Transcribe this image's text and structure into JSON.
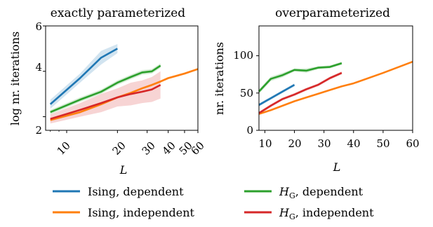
{
  "chart_data": [
    {
      "type": "line",
      "title": "exactly parameterized",
      "xlabel": "L",
      "ylabel": "log nr. iterations",
      "xscale": "log",
      "xlim": [
        7.5,
        60
      ],
      "ylim": [
        1.4,
        6
      ],
      "xticks": [
        "10",
        "20",
        "30",
        "40",
        "50",
        "60"
      ],
      "yticks": [
        "2",
        "4",
        "6"
      ],
      "grid": false,
      "series": [
        {
          "key": "ising_dep",
          "x": [
            8,
            12,
            16,
            20
          ],
          "y": [
            2.55,
            3.7,
            4.6,
            5.0
          ],
          "band": [
            0.2,
            0.2,
            0.3,
            0.2
          ]
        },
        {
          "key": "ising_ind",
          "x": [
            8,
            12,
            16,
            20,
            24,
            28,
            32,
            36,
            40,
            50,
            60
          ],
          "y": [
            1.85,
            2.2,
            2.55,
            2.85,
            3.05,
            3.25,
            3.4,
            3.55,
            3.7,
            3.9,
            4.1
          ],
          "band": [
            0.05,
            0.05,
            0.05,
            0.05,
            0.05,
            0.05,
            0.05,
            0.05,
            0.05,
            0.05,
            0.05
          ]
        },
        {
          "key": "hg_dep",
          "x": [
            8,
            12,
            16,
            20,
            24,
            28,
            32,
            36
          ],
          "y": [
            2.2,
            2.75,
            3.1,
            3.5,
            3.75,
            3.95,
            4.0,
            4.25
          ],
          "band": [
            0.1,
            0.1,
            0.1,
            0.1,
            0.1,
            0.1,
            0.1,
            0.1
          ]
        },
        {
          "key": "hg_ind",
          "x": [
            8,
            12,
            16,
            20,
            24,
            28,
            32,
            36
          ],
          "y": [
            1.9,
            2.3,
            2.6,
            2.85,
            3.0,
            3.1,
            3.2,
            3.4
          ],
          "band": [
            0.2,
            0.3,
            0.4,
            0.4,
            0.5,
            0.5,
            0.55,
            0.6
          ]
        }
      ]
    },
    {
      "type": "line",
      "title": "overparameterized",
      "xlabel": "L",
      "ylabel": "nr. iterations",
      "xscale": "linear",
      "xlim": [
        8,
        60
      ],
      "ylim": [
        0,
        140
      ],
      "xticks": [
        "10",
        "20",
        "30",
        "40",
        "50",
        "60"
      ],
      "yticks": [
        "0",
        "50",
        "100"
      ],
      "grid": false,
      "series": [
        {
          "key": "ising_dep",
          "x": [
            8,
            12,
            16,
            20
          ],
          "y": [
            34,
            43,
            52,
            61
          ],
          "band": [
            2,
            2,
            2,
            2
          ]
        },
        {
          "key": "ising_ind",
          "x": [
            8,
            12,
            16,
            20,
            24,
            28,
            32,
            36,
            40,
            50,
            60
          ],
          "y": [
            22,
            27,
            33,
            39,
            44,
            49,
            54,
            59,
            63,
            77,
            92
          ],
          "band": [
            1,
            1,
            1,
            1,
            1,
            1,
            1,
            1,
            1,
            1,
            1
          ]
        },
        {
          "key": "hg_dep",
          "x": [
            8,
            12,
            16,
            20,
            24,
            28,
            32,
            36
          ],
          "y": [
            52,
            69,
            74,
            81,
            80,
            84,
            85,
            90
          ],
          "band": [
            3,
            3,
            3,
            2,
            3,
            2,
            2,
            2
          ]
        },
        {
          "key": "hg_ind",
          "x": [
            8,
            12,
            16,
            20,
            24,
            28,
            32,
            36
          ],
          "y": [
            23,
            33,
            42,
            48,
            55,
            61,
            70,
            77
          ],
          "band": [
            2,
            2,
            2,
            2,
            2,
            2,
            2,
            2
          ]
        }
      ]
    }
  ],
  "legend": {
    "placement": "bottom",
    "items": [
      {
        "key": "ising_dep",
        "label": "Ising, dependent",
        "color": "#1f77b4"
      },
      {
        "key": "hg_dep",
        "label_main": "H",
        "label_sub": "G",
        "label_rest": ", dependent",
        "color": "#2ca02c"
      },
      {
        "key": "ising_ind",
        "label": "Ising, independent",
        "color": "#ff7f0e"
      },
      {
        "key": "hg_ind",
        "label_main": "H",
        "label_sub": "G",
        "label_rest": ", independent",
        "color": "#d62728"
      }
    ]
  }
}
